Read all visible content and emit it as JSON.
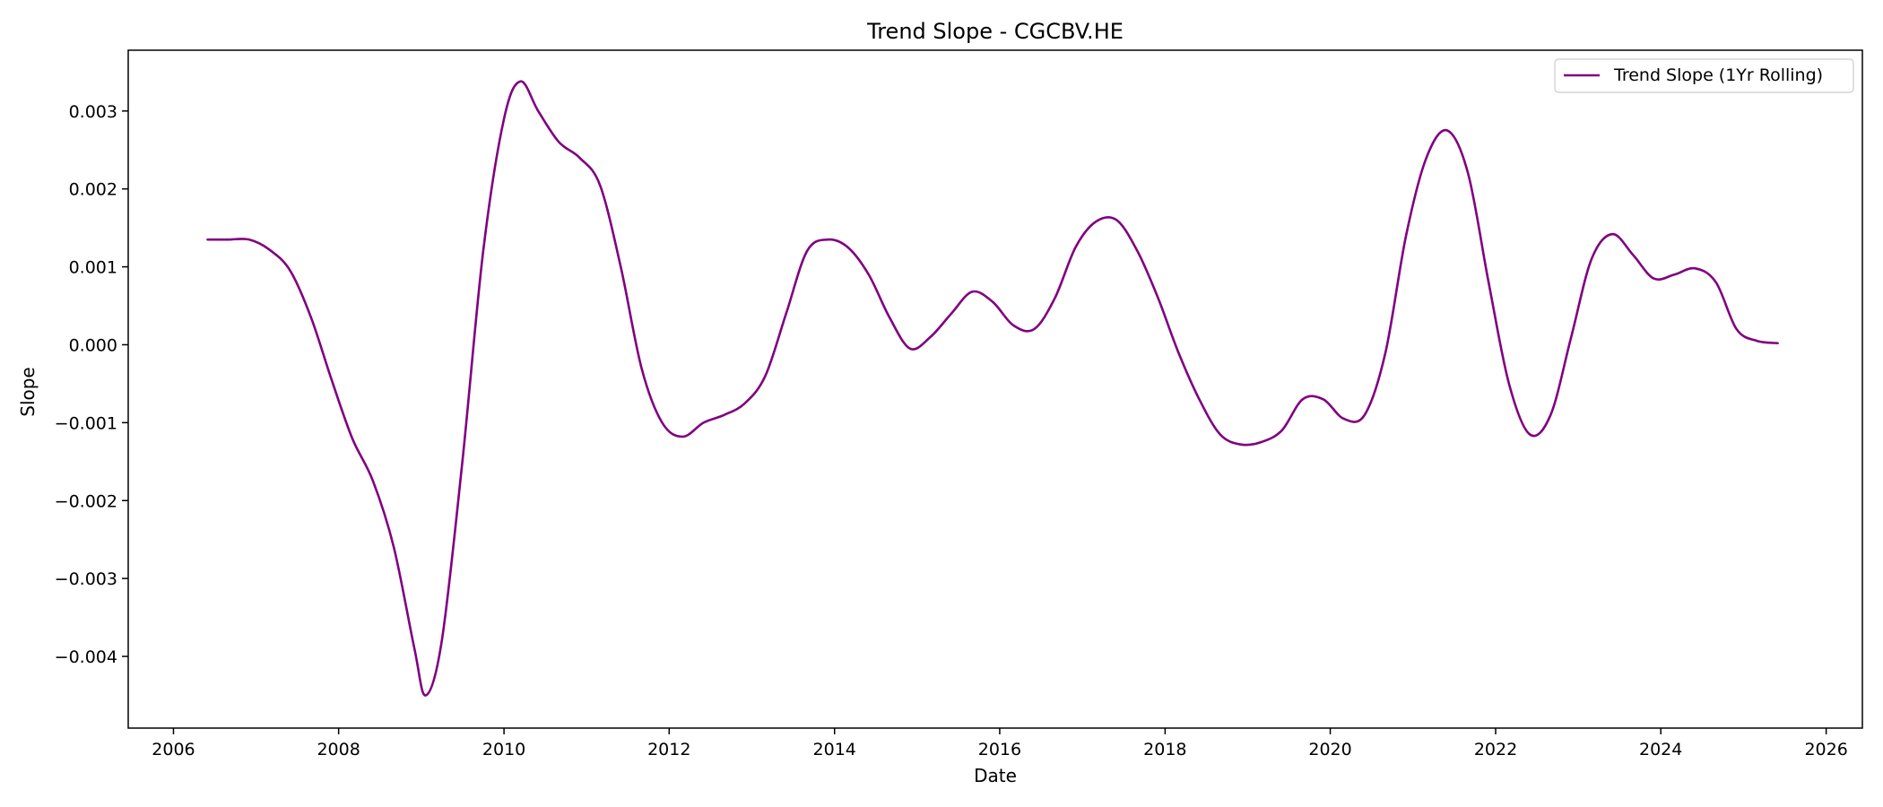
{
  "chart_data": {
    "type": "line",
    "title": "Trend Slope - CGCBV.HE",
    "xlabel": "Date",
    "ylabel": "Slope",
    "x_ticks": [
      "2006",
      "2008",
      "2010",
      "2012",
      "2014",
      "2016",
      "2018",
      "2020",
      "2022",
      "2024",
      "2026"
    ],
    "y_ticks": [
      "0.003",
      "0.002",
      "0.001",
      "0.000",
      "−0.001",
      "−0.002",
      "−0.003",
      "−0.004"
    ],
    "xlim": [
      "2005-06-15",
      "2026-06-10"
    ],
    "ylim": [
      -0.00492,
      0.00378
    ],
    "grid": false,
    "legend": {
      "placement": "upper-right"
    },
    "series": [
      {
        "name": "Trend Slope (1Yr Rolling)",
        "color": "#800080",
        "points": [
          [
            "2006-06-01",
            0.00135
          ],
          [
            "2006-09-01",
            0.00135
          ],
          [
            "2006-12-01",
            0.00135
          ],
          [
            "2007-03-01",
            0.00122
          ],
          [
            "2007-06-01",
            0.00095
          ],
          [
            "2007-09-01",
            0.00035
          ],
          [
            "2007-12-01",
            -0.00045
          ],
          [
            "2008-03-01",
            -0.0012
          ],
          [
            "2008-06-01",
            -0.00175
          ],
          [
            "2008-09-01",
            -0.0026
          ],
          [
            "2008-12-01",
            -0.0039
          ],
          [
            "2009-01-20",
            -0.0045
          ],
          [
            "2009-04-01",
            -0.0038
          ],
          [
            "2009-07-01",
            -0.0015
          ],
          [
            "2009-10-01",
            0.0012
          ],
          [
            "2010-01-01",
            0.0029
          ],
          [
            "2010-03-15",
            0.00338
          ],
          [
            "2010-06-01",
            0.003
          ],
          [
            "2010-09-01",
            0.0026
          ],
          [
            "2010-12-01",
            0.0024
          ],
          [
            "2011-03-01",
            0.00205
          ],
          [
            "2011-06-01",
            0.001
          ],
          [
            "2011-09-01",
            -0.0003
          ],
          [
            "2011-12-01",
            -0.001
          ],
          [
            "2012-03-01",
            -0.00118
          ],
          [
            "2012-06-01",
            -0.001
          ],
          [
            "2012-09-01",
            -0.0009
          ],
          [
            "2012-12-01",
            -0.00075
          ],
          [
            "2013-03-01",
            -0.0004
          ],
          [
            "2013-06-01",
            0.0004
          ],
          [
            "2013-09-01",
            0.0012
          ],
          [
            "2013-12-01",
            0.00135
          ],
          [
            "2014-03-01",
            0.00125
          ],
          [
            "2014-06-01",
            0.0009
          ],
          [
            "2014-09-01",
            0.00035
          ],
          [
            "2014-12-01",
            -5e-05
          ],
          [
            "2015-03-01",
            0.0001
          ],
          [
            "2015-06-01",
            0.0004
          ],
          [
            "2015-09-01",
            0.00068
          ],
          [
            "2015-12-01",
            0.00055
          ],
          [
            "2016-03-01",
            0.00025
          ],
          [
            "2016-06-01",
            0.0002
          ],
          [
            "2016-09-01",
            0.0006
          ],
          [
            "2016-12-01",
            0.00125
          ],
          [
            "2017-03-01",
            0.00158
          ],
          [
            "2017-06-01",
            0.0016
          ],
          [
            "2017-09-01",
            0.0012
          ],
          [
            "2017-12-01",
            0.0006
          ],
          [
            "2018-03-01",
            -0.0001
          ],
          [
            "2018-06-01",
            -0.0007
          ],
          [
            "2018-09-01",
            -0.00115
          ],
          [
            "2018-12-01",
            -0.00128
          ],
          [
            "2019-03-01",
            -0.00125
          ],
          [
            "2019-06-01",
            -0.0011
          ],
          [
            "2019-09-01",
            -0.0007
          ],
          [
            "2019-12-01",
            -0.0007
          ],
          [
            "2020-03-01",
            -0.00095
          ],
          [
            "2020-06-01",
            -0.0009
          ],
          [
            "2020-09-01",
            -0.0001
          ],
          [
            "2020-12-01",
            0.0014
          ],
          [
            "2021-03-01",
            0.0024
          ],
          [
            "2021-06-01",
            0.00275
          ],
          [
            "2021-09-01",
            0.0022
          ],
          [
            "2021-12-01",
            0.0008
          ],
          [
            "2022-03-01",
            -0.0005
          ],
          [
            "2022-06-01",
            -0.00115
          ],
          [
            "2022-09-01",
            -0.0009
          ],
          [
            "2022-12-01",
            0.0001
          ],
          [
            "2023-03-01",
            0.0011
          ],
          [
            "2023-06-01",
            0.00142
          ],
          [
            "2023-09-01",
            0.00115
          ],
          [
            "2023-12-01",
            0.00085
          ],
          [
            "2024-03-01",
            0.0009
          ],
          [
            "2024-06-01",
            0.00098
          ],
          [
            "2024-09-01",
            0.0008
          ],
          [
            "2024-12-01",
            0.0002
          ],
          [
            "2025-03-01",
            5e-05
          ],
          [
            "2025-06-01",
            2e-05
          ]
        ]
      }
    ]
  }
}
